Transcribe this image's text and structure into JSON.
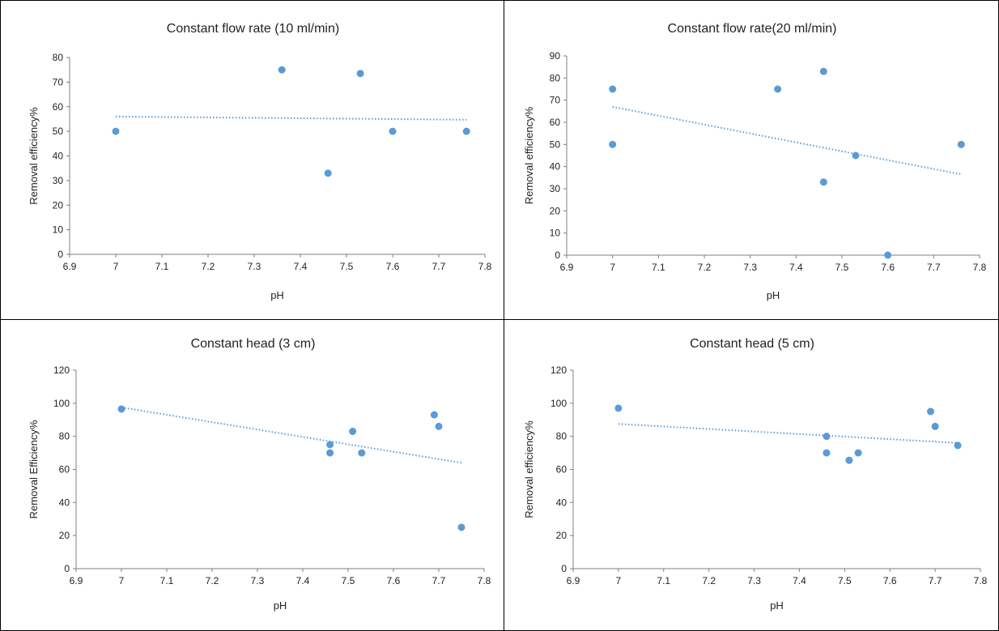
{
  "chart_data": [
    {
      "type": "scatter",
      "title": "Constant flow rate (10 ml/min)",
      "xlabel": "pH",
      "ylabel": "Removal efficiency%",
      "xlim": [
        6.9,
        7.8
      ],
      "ylim": [
        0,
        80
      ],
      "xticks": [
        "6.9",
        "7",
        "7.1",
        "7.2",
        "7.3",
        "7.4",
        "7.5",
        "7.6",
        "7.7",
        "7.8"
      ],
      "yticks": [
        "0",
        "10",
        "20",
        "30",
        "40",
        "50",
        "60",
        "70",
        "80"
      ],
      "points": [
        {
          "x": 7.0,
          "y": 50
        },
        {
          "x": 7.36,
          "y": 75
        },
        {
          "x": 7.46,
          "y": 33
        },
        {
          "x": 7.53,
          "y": 73.5
        },
        {
          "x": 7.6,
          "y": 50
        },
        {
          "x": 7.76,
          "y": 50
        }
      ],
      "trendline": {
        "type": "linear",
        "x": [
          7.0,
          7.76
        ],
        "y": [
          56,
          54.7
        ]
      },
      "color": "#5b9bd5",
      "grid": false
    },
    {
      "type": "scatter",
      "title": "Constant flow rate(20 ml/min)",
      "xlabel": "pH",
      "ylabel": "Removal efficiency%",
      "xlim": [
        6.9,
        7.8
      ],
      "ylim": [
        0,
        90
      ],
      "xticks": [
        "6.9",
        "7",
        "7.1",
        "7.2",
        "7.3",
        "7.4",
        "7.5",
        "7.6",
        "7.7",
        "7.8"
      ],
      "yticks": [
        "0",
        "10",
        "20",
        "30",
        "40",
        "50",
        "60",
        "70",
        "80",
        "90"
      ],
      "points": [
        {
          "x": 7.0,
          "y": 75
        },
        {
          "x": 7.0,
          "y": 50
        },
        {
          "x": 7.36,
          "y": 75
        },
        {
          "x": 7.46,
          "y": 83
        },
        {
          "x": 7.46,
          "y": 33
        },
        {
          "x": 7.53,
          "y": 45
        },
        {
          "x": 7.6,
          "y": 0
        },
        {
          "x": 7.76,
          "y": 50
        }
      ],
      "trendline": {
        "type": "linear",
        "x": [
          7.0,
          7.76
        ],
        "y": [
          67,
          36.5
        ]
      },
      "color": "#5b9bd5",
      "grid": false
    },
    {
      "type": "scatter",
      "title": "Constant head (3 cm)",
      "xlabel": "pH",
      "ylabel": "Removal Efficiency%",
      "xlim": [
        6.9,
        7.8
      ],
      "ylim": [
        0,
        120
      ],
      "xticks": [
        "6.9",
        "7",
        "7.1",
        "7.2",
        "7.3",
        "7.4",
        "7.5",
        "7.6",
        "7.7",
        "7.8"
      ],
      "yticks": [
        "0",
        "20",
        "40",
        "60",
        "80",
        "100",
        "120"
      ],
      "points": [
        {
          "x": 7.0,
          "y": 96.5
        },
        {
          "x": 7.46,
          "y": 75
        },
        {
          "x": 7.46,
          "y": 70
        },
        {
          "x": 7.51,
          "y": 83
        },
        {
          "x": 7.53,
          "y": 70
        },
        {
          "x": 7.69,
          "y": 93
        },
        {
          "x": 7.7,
          "y": 86
        },
        {
          "x": 7.75,
          "y": 25
        }
      ],
      "trendline": {
        "type": "linear",
        "x": [
          7.0,
          7.75
        ],
        "y": [
          97.5,
          64
        ]
      },
      "color": "#5b9bd5",
      "grid": false
    },
    {
      "type": "scatter",
      "title": "Constant head (5 cm)",
      "xlabel": "pH",
      "ylabel": "Removal efficiency%",
      "xlim": [
        6.9,
        7.8
      ],
      "ylim": [
        0,
        120
      ],
      "xticks": [
        "6.9",
        "7",
        "7.1",
        "7.2",
        "7.3",
        "7.4",
        "7.5",
        "7.6",
        "7.7",
        "7.8"
      ],
      "yticks": [
        "0",
        "20",
        "40",
        "60",
        "80",
        "100",
        "120"
      ],
      "points": [
        {
          "x": 7.0,
          "y": 97
        },
        {
          "x": 7.46,
          "y": 80
        },
        {
          "x": 7.46,
          "y": 70
        },
        {
          "x": 7.51,
          "y": 65.5
        },
        {
          "x": 7.53,
          "y": 70
        },
        {
          "x": 7.69,
          "y": 95
        },
        {
          "x": 7.7,
          "y": 86
        },
        {
          "x": 7.75,
          "y": 74.5
        }
      ],
      "trendline": {
        "type": "linear",
        "x": [
          7.0,
          7.75
        ],
        "y": [
          87.5,
          76
        ]
      },
      "color": "#5b9bd5",
      "grid": false
    }
  ]
}
